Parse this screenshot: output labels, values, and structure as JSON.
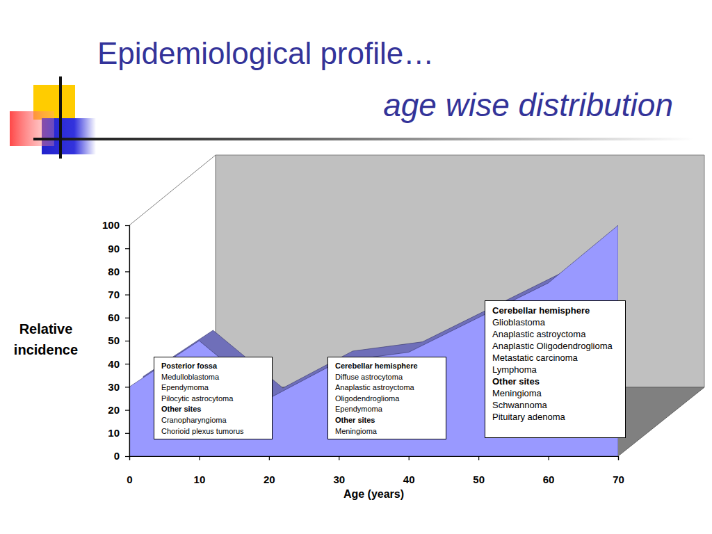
{
  "chart_data": {
    "type": "area",
    "title": "Epidemiological profile…",
    "subtitle": "age wise distribution",
    "x_label": "Age (years)",
    "y_label": "Relative incidence",
    "x": [
      0,
      10,
      20,
      30,
      40,
      50,
      60,
      70
    ],
    "values": [
      30,
      50,
      25,
      41,
      45,
      60,
      75,
      100
    ],
    "color": "#9999ff",
    "xlim": [
      0,
      70
    ],
    "ylim": [
      0,
      100
    ],
    "xticks": [
      0,
      10,
      20,
      30,
      40,
      50,
      60,
      70
    ],
    "yticks": [
      0,
      10,
      20,
      30,
      40,
      50,
      60,
      70,
      80,
      90,
      100
    ],
    "annotations": [
      {
        "groups": [
          {
            "heading": "Posterior fossa",
            "items": [
              "Medulloblastoma",
              "Ependymoma",
              "Pilocytic astrocytoma"
            ]
          },
          {
            "heading": "Other sites",
            "items": [
              "Cranopharyngioma",
              "Chorioid plexus tumorus"
            ]
          }
        ]
      },
      {
        "groups": [
          {
            "heading": "Cerebellar hemisphere",
            "items": [
              "Diffuse astrocytoma",
              "Anaplastic astroyctoma",
              "Oligodendroglioma",
              "Ependymoma"
            ]
          },
          {
            "heading": "Other sites",
            "items": [
              "Meningioma"
            ]
          }
        ]
      },
      {
        "groups": [
          {
            "heading": "Cerebellar hemisphere",
            "items": [
              "Glioblastoma",
              "Anaplastic astroyctoma",
              "Anaplastic Oligodendroglioma",
              "Metastatic carcinoma",
              "Lymphoma"
            ]
          },
          {
            "heading": "Other sites",
            "items": [
              "Meningioma",
              "Schwannoma",
              "Pituitary adenoma"
            ]
          }
        ]
      }
    ]
  }
}
